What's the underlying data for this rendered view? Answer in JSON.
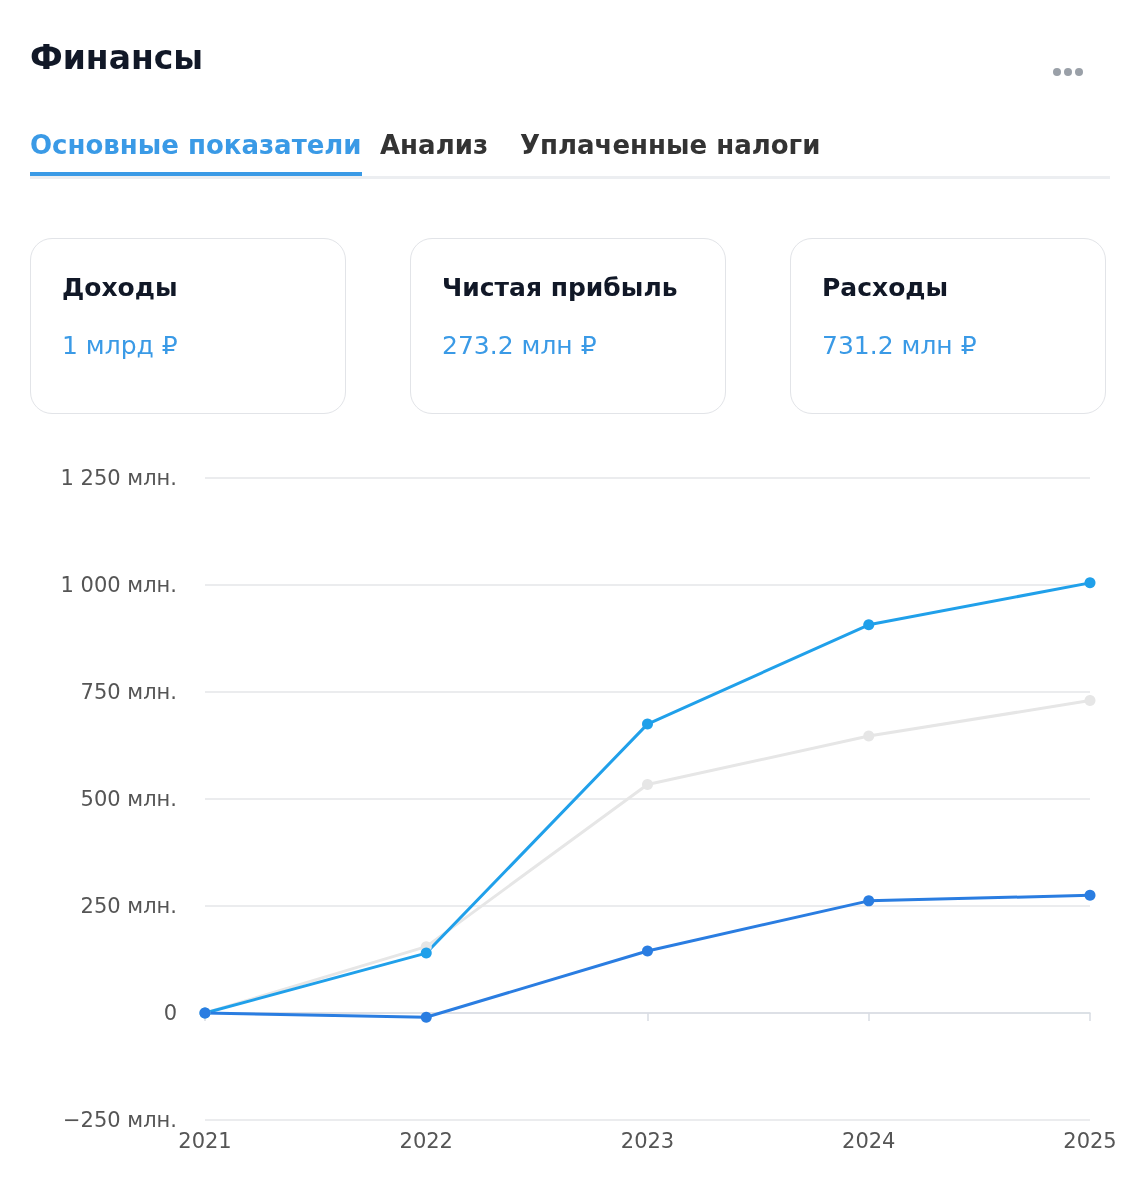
{
  "chart_data": {
    "type": "line",
    "title": "Финансы",
    "annotations": [
      "Основные показатели",
      "Анализ",
      "Уплаченные налоги",
      "Доходы",
      "1 млрд ₽",
      "Чистая прибыль",
      "273.2 млн ₽",
      "Расходы",
      "731.2 млн ₽"
    ],
    "categories": [
      "2021",
      "2022",
      "2023",
      "2024",
      "2025"
    ],
    "series": [
      {
        "color": "#e6e6e6",
        "values": [
          0,
          155,
          534,
          647,
          730
        ]
      },
      {
        "color": "#20a0ea",
        "values": [
          0,
          140,
          675,
          907,
          1005
        ]
      },
      {
        "color": "#2a7de1",
        "values": [
          0,
          -10,
          145,
          262,
          275
        ]
      }
    ],
    "ylim": [
      -250,
      1250
    ],
    "yticks": [
      {
        "value": -250,
        "label": "−250 млн."
      },
      {
        "value": 0,
        "label": "0"
      },
      {
        "value": 250,
        "label": "250 млн."
      },
      {
        "value": 500,
        "label": "500 млн."
      },
      {
        "value": 750,
        "label": "750 млн."
      },
      {
        "value": 1000,
        "label": "1 000 млн."
      },
      {
        "value": 1250,
        "label": "1 250 млн."
      }
    ],
    "grid": "y",
    "marker": "circle",
    "line_style": "solid"
  }
}
